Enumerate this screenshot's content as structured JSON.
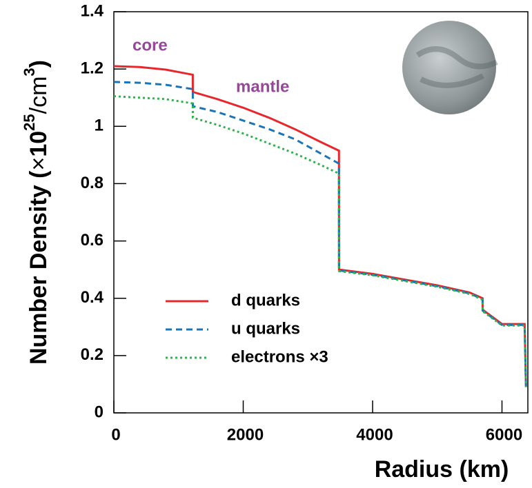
{
  "chart_data": {
    "type": "line",
    "x_label": "Radius (km)",
    "y_label": [
      "Number Density (",
      "×",
      "10",
      "25",
      "/cm",
      "3",
      ")"
    ],
    "annotations": [
      "core",
      "mantle"
    ],
    "x": [
      0,
      400,
      800,
      1220,
      1221,
      1600,
      2000,
      2400,
      2800,
      3200,
      3480,
      3481,
      4000,
      4500,
      5000,
      5500,
      5700,
      5701,
      6000,
      6350,
      6371
    ],
    "series": [
      {
        "name": "d quarks",
        "color": "#e8262b",
        "dash": "solid",
        "values": [
          1.21,
          1.207,
          1.198,
          1.18,
          1.12,
          1.095,
          1.065,
          1.03,
          0.99,
          0.945,
          0.915,
          0.5,
          0.485,
          0.465,
          0.445,
          0.42,
          0.4,
          0.36,
          0.31,
          0.31,
          0.09
        ]
      },
      {
        "name": "u quarks",
        "color": "#1a75b8",
        "dash": "dashed",
        "values": [
          1.155,
          1.152,
          1.145,
          1.13,
          1.07,
          1.05,
          1.02,
          0.99,
          0.955,
          0.905,
          0.87,
          0.497,
          0.482,
          0.462,
          0.442,
          0.417,
          0.397,
          0.357,
          0.307,
          0.307,
          0.09
        ]
      },
      {
        "name": "electrons ×3",
        "color": "#2db34a",
        "dash": "dotted",
        "values": [
          1.105,
          1.1,
          1.095,
          1.08,
          1.03,
          1.005,
          0.975,
          0.94,
          0.905,
          0.865,
          0.835,
          0.495,
          0.48,
          0.46,
          0.44,
          0.415,
          0.395,
          0.355,
          0.305,
          0.305,
          0.09
        ]
      }
    ],
    "xlim": [
      0,
      6400
    ],
    "xticks": [
      0,
      2000,
      4000,
      6000
    ],
    "ylim": [
      0,
      1.4
    ],
    "yticks": [
      0,
      0.2,
      0.4,
      0.6,
      0.8,
      1,
      1.2,
      1.4
    ]
  }
}
